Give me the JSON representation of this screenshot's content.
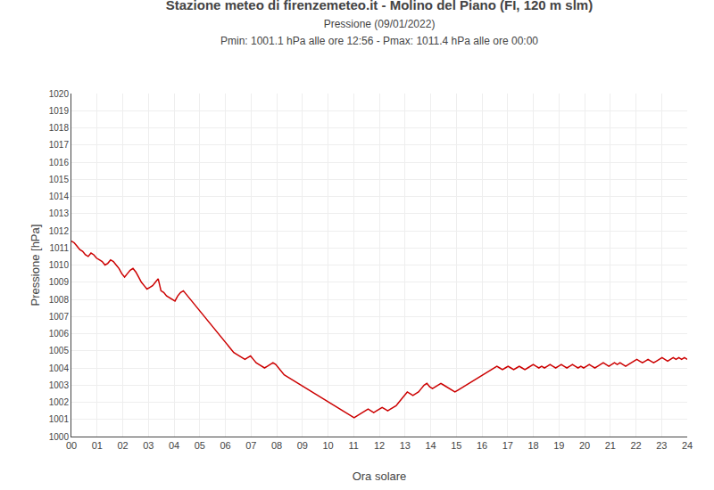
{
  "chart_data": {
    "type": "line",
    "title": "Stazione meteo di firenzemeteo.it - Molino del Piano (FI, 120 m slm)",
    "subtitle": [
      "Pressione (09/01/2022)",
      "Pmin: 1001.1 hPa alle ore 12:56 - Pmax: 1011.4 hPa alle ore 00:00"
    ],
    "xlabel": "Ora solare",
    "ylabel": "Pressione [hPa]",
    "color": "#cc0000",
    "grid": true,
    "xlim": [
      0,
      24
    ],
    "ylim": [
      1000,
      1020
    ],
    "xticks": [
      {
        "value": 0,
        "label": "00"
      },
      {
        "value": 1,
        "label": "01"
      },
      {
        "value": 2,
        "label": "02"
      },
      {
        "value": 3,
        "label": "03"
      },
      {
        "value": 4,
        "label": "04"
      },
      {
        "value": 5,
        "label": "05"
      },
      {
        "value": 6,
        "label": "06"
      },
      {
        "value": 7,
        "label": "07"
      },
      {
        "value": 8,
        "label": "08"
      },
      {
        "value": 9,
        "label": "09"
      },
      10,
      11,
      12,
      13,
      14,
      15,
      16,
      17,
      18,
      19,
      20,
      21,
      22,
      23,
      24
    ],
    "yticks": [
      1000,
      1001,
      1002,
      1003,
      1004,
      1005,
      1006,
      1007,
      1008,
      1009,
      1010,
      1011,
      1012,
      1013,
      1014,
      1015,
      1016,
      1017,
      1018,
      1019,
      1020
    ],
    "x": [
      0,
      0.1091,
      0.2182,
      0.3273,
      0.4364,
      0.5455,
      0.6545,
      0.7636,
      0.8727,
      0.9818,
      1.0909,
      1.2,
      1.3091,
      1.4182,
      1.5273,
      1.6364,
      1.7455,
      1.8545,
      1.9636,
      2.0727,
      2.1818,
      2.2909,
      2.4,
      2.5091,
      2.6182,
      2.7273,
      2.8364,
      2.9455,
      3.0545,
      3.1636,
      3.2727,
      3.3818,
      3.4909,
      3.6,
      3.7091,
      3.8182,
      3.9273,
      4.0364,
      4.1455,
      4.2545,
      4.3636,
      4.4727,
      4.5818,
      4.6909,
      4.8,
      4.9091,
      5.0182,
      5.1273,
      5.2364,
      5.3455,
      5.4545,
      5.5636,
      5.6727,
      5.7818,
      5.8909,
      6,
      6.1091,
      6.2182,
      6.3273,
      6.4364,
      6.5455,
      6.6545,
      6.7636,
      6.8727,
      6.9818,
      7.0909,
      7.2,
      7.3091,
      7.4182,
      7.5273,
      7.6364,
      7.7455,
      7.8545,
      7.9636,
      8.0727,
      8.1818,
      8.2909,
      8.4,
      8.5091,
      8.6182,
      8.7273,
      8.8364,
      8.9455,
      9.0545,
      9.1636,
      9.2727,
      9.3818,
      9.4909,
      9.6,
      9.7091,
      9.8182,
      9.9273,
      10.0364,
      10.1455,
      10.2545,
      10.3636,
      10.4727,
      10.5818,
      10.6909,
      10.8,
      10.9091,
      11.0182,
      11.1273,
      11.2364,
      11.3455,
      11.4545,
      11.5636,
      11.6727,
      11.7818,
      11.8909,
      12,
      12.1091,
      12.2182,
      12.3273,
      12.4364,
      12.5455,
      12.6545,
      12.7636,
      12.8727,
      12.9818,
      13.0909,
      13.2,
      13.3091,
      13.4182,
      13.5273,
      13.6364,
      13.7455,
      13.8545,
      13.9636,
      14.0727,
      14.1818,
      14.2909,
      14.4,
      14.5091,
      14.6182,
      14.7273,
      14.8364,
      14.9455,
      15.0545,
      15.1636,
      15.2727,
      15.3818,
      15.4909,
      15.6,
      15.7091,
      15.8182,
      15.9273,
      16.0364,
      16.1455,
      16.2545,
      16.3636,
      16.4727,
      16.5818,
      16.6909,
      16.8,
      16.9091,
      17.0182,
      17.1273,
      17.2364,
      17.3455,
      17.4545,
      17.5636,
      17.6727,
      17.7818,
      17.8909,
      18,
      18.1091,
      18.2182,
      18.3273,
      18.4364,
      18.5455,
      18.6545,
      18.7636,
      18.8727,
      18.9818,
      19.0909,
      19.2,
      19.3091,
      19.4182,
      19.5273,
      19.6364,
      19.7455,
      19.8545,
      19.9636,
      20.0727,
      20.1818,
      20.2909,
      20.4,
      20.5091,
      20.6182,
      20.7273,
      20.8364,
      20.9455,
      21.0545,
      21.1636,
      21.2727,
      21.3818,
      21.4909,
      21.6,
      21.7091,
      21.8182,
      21.9273,
      22.0364,
      22.1455,
      22.2545,
      22.3636,
      22.4727,
      22.5818,
      22.6909,
      22.8,
      22.9091,
      23.0182,
      23.1273,
      23.2364,
      23.3455,
      23.4545,
      23.5636,
      23.6727,
      23.7818,
      23.8909,
      24
    ],
    "values": [
      1011.4,
      1011.3,
      1011.1,
      1010.9,
      1010.8,
      1010.6,
      1010.5,
      1010.7,
      1010.6,
      1010.4,
      1010.3,
      1010.2,
      1010.0,
      1010.1,
      1010.3,
      1010.2,
      1010.0,
      1009.8,
      1009.5,
      1009.3,
      1009.5,
      1009.7,
      1009.8,
      1009.6,
      1009.3,
      1009.0,
      1008.8,
      1008.6,
      1008.7,
      1008.8,
      1009.0,
      1009.2,
      1008.5,
      1008.4,
      1008.2,
      1008.1,
      1008.0,
      1007.9,
      1008.2,
      1008.4,
      1008.5,
      1008.3,
      1008.1,
      1007.9,
      1007.7,
      1007.5,
      1007.3,
      1007.1,
      1006.9,
      1006.7,
      1006.5,
      1006.3,
      1006.1,
      1005.9,
      1005.7,
      1005.5,
      1005.3,
      1005.1,
      1004.9,
      1004.8,
      1004.7,
      1004.6,
      1004.5,
      1004.6,
      1004.7,
      1004.5,
      1004.3,
      1004.2,
      1004.1,
      1004.0,
      1004.1,
      1004.2,
      1004.3,
      1004.2,
      1004.0,
      1003.8,
      1003.6,
      1003.5,
      1003.4,
      1003.3,
      1003.2,
      1003.1,
      1003.0,
      1002.9,
      1002.8,
      1002.7,
      1002.6,
      1002.5,
      1002.4,
      1002.3,
      1002.2,
      1002.1,
      1002.0,
      1001.9,
      1001.8,
      1001.7,
      1001.6,
      1001.5,
      1001.4,
      1001.3,
      1001.2,
      1001.1,
      1001.2,
      1001.3,
      1001.4,
      1001.5,
      1001.6,
      1001.5,
      1001.4,
      1001.5,
      1001.6,
      1001.7,
      1001.6,
      1001.5,
      1001.6,
      1001.7,
      1001.8,
      1002.0,
      1002.2,
      1002.4,
      1002.6,
      1002.5,
      1002.4,
      1002.5,
      1002.6,
      1002.8,
      1003.0,
      1003.1,
      1002.9,
      1002.8,
      1002.9,
      1003.0,
      1003.1,
      1003.0,
      1002.9,
      1002.8,
      1002.7,
      1002.6,
      1002.7,
      1002.8,
      1002.9,
      1003.0,
      1003.1,
      1003.2,
      1003.3,
      1003.4,
      1003.5,
      1003.6,
      1003.7,
      1003.8,
      1003.9,
      1004.0,
      1004.1,
      1004.0,
      1003.9,
      1004.0,
      1004.1,
      1004.0,
      1003.9,
      1004.0,
      1004.1,
      1004.0,
      1003.9,
      1004.0,
      1004.1,
      1004.2,
      1004.1,
      1004.0,
      1004.1,
      1004.0,
      1004.1,
      1004.2,
      1004.1,
      1004.0,
      1004.1,
      1004.2,
      1004.1,
      1004.0,
      1004.1,
      1004.2,
      1004.1,
      1004.0,
      1004.1,
      1004.0,
      1004.1,
      1004.2,
      1004.1,
      1004.0,
      1004.1,
      1004.2,
      1004.3,
      1004.2,
      1004.1,
      1004.2,
      1004.3,
      1004.2,
      1004.3,
      1004.2,
      1004.1,
      1004.2,
      1004.3,
      1004.4,
      1004.5,
      1004.4,
      1004.3,
      1004.4,
      1004.5,
      1004.4,
      1004.3,
      1004.4,
      1004.5,
      1004.6,
      1004.5,
      1004.4,
      1004.5,
      1004.6,
      1004.5,
      1004.6,
      1004.5,
      1004.6,
      1004.5
    ]
  }
}
